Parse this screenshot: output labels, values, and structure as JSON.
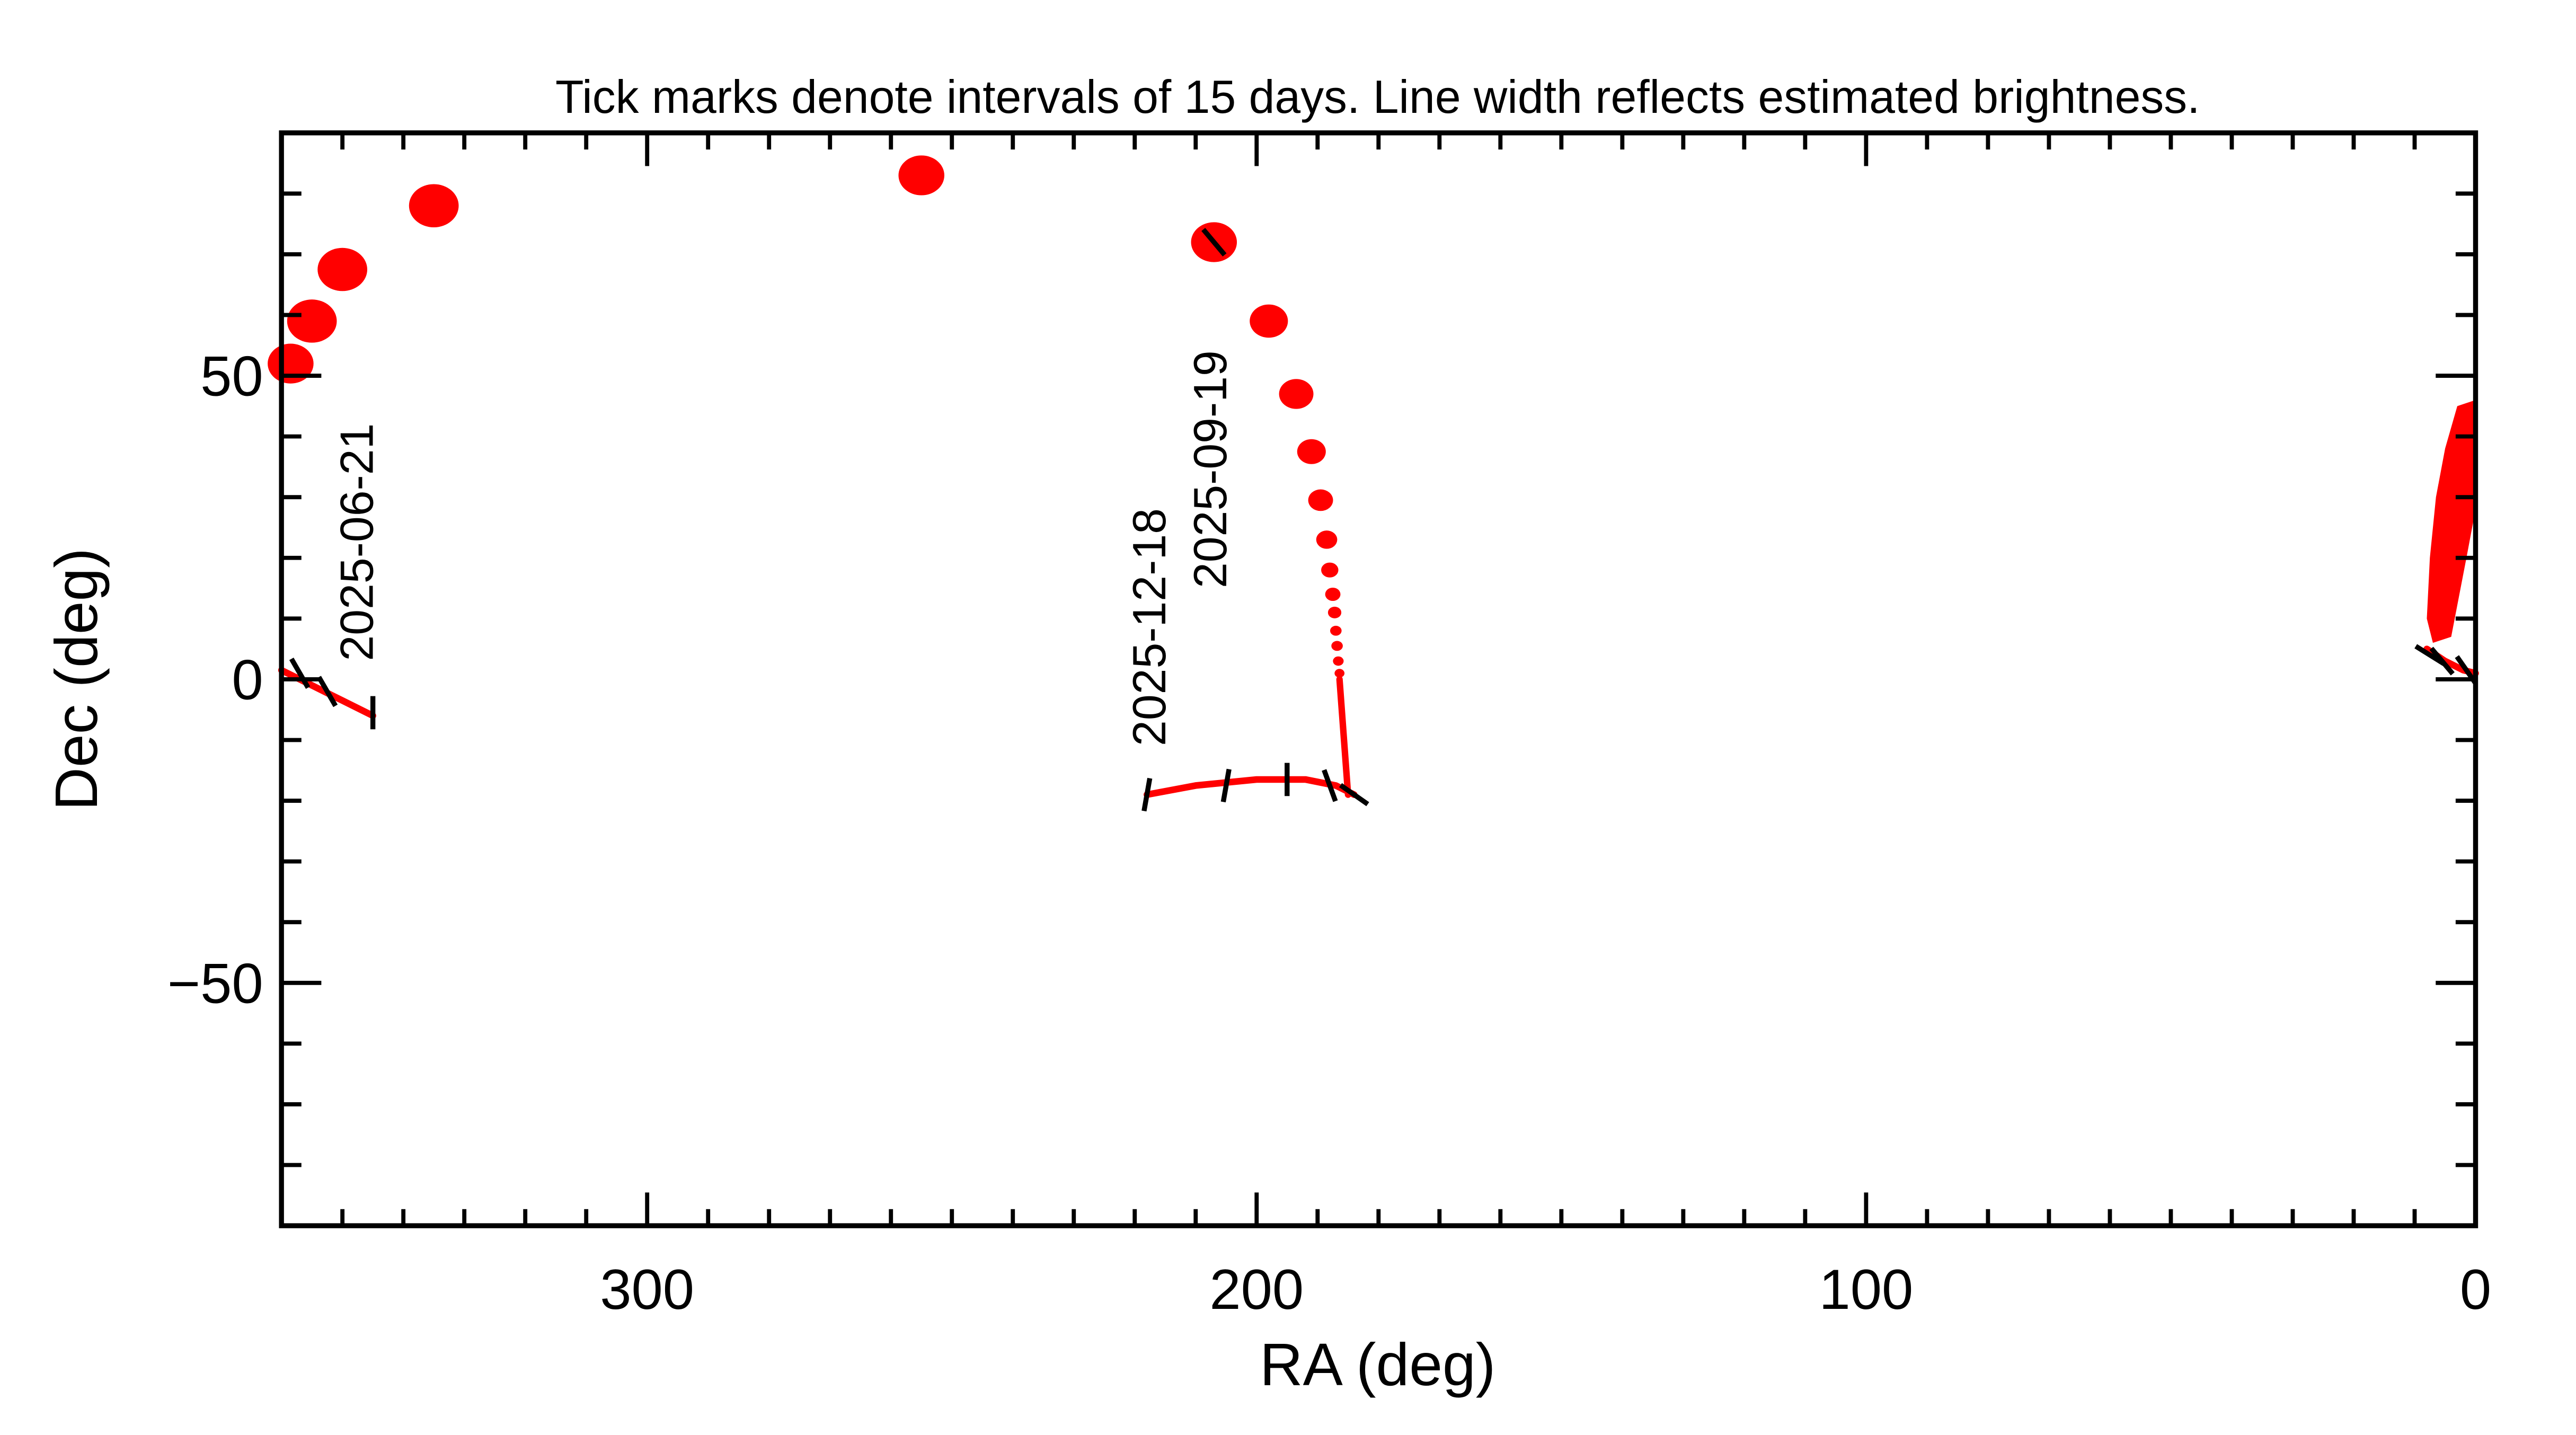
{
  "chart_data": {
    "type": "scatter",
    "title": "Tick marks denote intervals of 15 days.  Line width reflects estimated brightness.",
    "xlabel": "RA (deg)",
    "ylabel": "Dec (deg)",
    "xlim": [
      360,
      0
    ],
    "ylim": [
      -90,
      90
    ],
    "x_ticks": [
      300,
      200,
      100,
      0
    ],
    "y_ticks": [
      50,
      0,
      -50
    ],
    "y_tick_labels": [
      "50",
      "0",
      "−50"
    ],
    "minor_tick_step": 10,
    "grid": false,
    "track_color": "#ff0000",
    "tick_color": "#000000",
    "tracks": [
      {
        "points": [
          [
            360,
            1.5
          ],
          [
            355,
            -1
          ],
          [
            350,
            -3.5
          ],
          [
            345,
            -6
          ]
        ],
        "brightness": 2
      },
      {
        "points": [
          [
            218,
            -19
          ],
          [
            210,
            -17.5
          ],
          [
            200,
            -16.5
          ],
          [
            192,
            -16.5
          ],
          [
            187,
            -17.5
          ],
          [
            184,
            -19
          ]
        ],
        "brightness": 2
      },
      {
        "points": [
          [
            8,
            5
          ],
          [
            5,
            3
          ],
          [
            2,
            1.5
          ],
          [
            0,
            1
          ]
        ],
        "brightness": 2
      }
    ],
    "dots": [
      {
        "x": 358.5,
        "y": 52,
        "brightness": 12
      },
      {
        "x": 355,
        "y": 59,
        "brightness": 13
      },
      {
        "x": 350,
        "y": 67.5,
        "brightness": 13
      },
      {
        "x": 335,
        "y": 78,
        "brightness": 13
      },
      {
        "x": 255,
        "y": 83,
        "brightness": 12
      },
      {
        "x": 207,
        "y": 72,
        "brightness": 12
      },
      {
        "x": 198,
        "y": 59,
        "brightness": 10
      },
      {
        "x": 193.5,
        "y": 47,
        "brightness": 9
      },
      {
        "x": 191,
        "y": 37.5,
        "brightness": 7.5
      },
      {
        "x": 189.5,
        "y": 29.5,
        "brightness": 6.5
      },
      {
        "x": 188.5,
        "y": 23,
        "brightness": 5.5
      },
      {
        "x": 188,
        "y": 18,
        "brightness": 4.5
      },
      {
        "x": 187.5,
        "y": 14,
        "brightness": 4
      },
      {
        "x": 187.2,
        "y": 11,
        "brightness": 3.5
      },
      {
        "x": 187,
        "y": 8,
        "brightness": 3
      },
      {
        "x": 186.8,
        "y": 5.5,
        "brightness": 3
      },
      {
        "x": 186.6,
        "y": 3,
        "brightness": 2.8
      },
      {
        "x": 186.4,
        "y": 1,
        "brightness": 2.6
      }
    ],
    "dense_segments": [
      {
        "points": [
          [
            186.4,
            0
          ],
          [
            185,
            -19
          ]
        ],
        "brightness": 3
      }
    ],
    "blob": {
      "points": [
        [
          0,
          46
        ],
        [
          3,
          45
        ],
        [
          5,
          38
        ],
        [
          6.5,
          30
        ],
        [
          7.5,
          20
        ],
        [
          8,
          10
        ],
        [
          7,
          6
        ],
        [
          4,
          7
        ],
        [
          1.5,
          20
        ],
        [
          0,
          28
        ]
      ]
    },
    "date_ticks": [
      {
        "x": 357,
        "y": 1,
        "angle": 30
      },
      {
        "x": 352.5,
        "y": -2,
        "angle": 30
      },
      {
        "x": 345,
        "y": -5.5,
        "angle": 0
      },
      {
        "x": 218,
        "y": -19,
        "angle": -10
      },
      {
        "x": 205,
        "y": -17.5,
        "angle": -10
      },
      {
        "x": 195,
        "y": -16.5,
        "angle": 0
      },
      {
        "x": 188,
        "y": -17.5,
        "angle": 20
      },
      {
        "x": 184,
        "y": -19,
        "angle": 55
      },
      {
        "x": 207,
        "y": 72,
        "angle": 40
      },
      {
        "x": 7.5,
        "y": 4,
        "angle": 58
      },
      {
        "x": 5.5,
        "y": 3,
        "angle": 40
      },
      {
        "x": 1.5,
        "y": 1.5,
        "angle": 35
      }
    ],
    "annotations": [
      {
        "text": "2025-06-21",
        "x": 345,
        "y": 3
      },
      {
        "text": "2025-12-18",
        "x": 215,
        "y": -11
      },
      {
        "text": "2025-09-19",
        "x": 205,
        "y": 15
      }
    ]
  }
}
